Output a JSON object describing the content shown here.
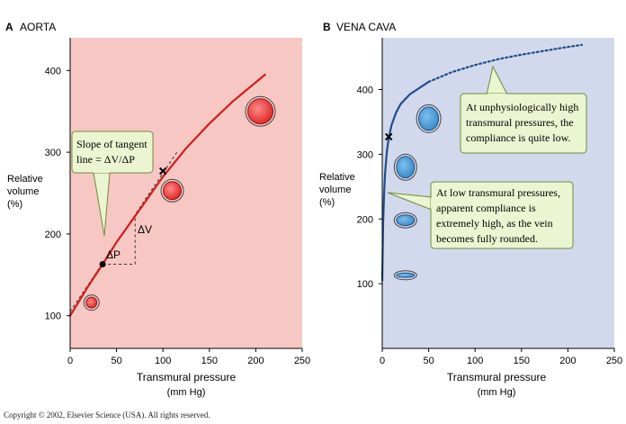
{
  "copyright": "Copyright © 2002, Elsevier Science (USA).  All rights reserved.",
  "chart_data": [
    {
      "type": "line",
      "panel": "A",
      "title": "AORTA",
      "xlabel": "Transmural pressure",
      "xlabel_unit": "(mm Hg)",
      "ylabel": [
        "Relative",
        "volume",
        "(%)"
      ],
      "xlim": [
        0,
        250
      ],
      "ylim": [
        60,
        440
      ],
      "xticks": [
        0,
        50,
        100,
        150,
        200,
        250
      ],
      "yticks": [
        100,
        200,
        300,
        400
      ],
      "background": "#f7c7c3",
      "curve_color": "#cc1f1f",
      "grid": false,
      "series": [
        {
          "x": [
            0,
            20,
            35,
            50,
            75,
            100,
            125,
            150,
            175,
            210
          ],
          "y": [
            100,
            137,
            163,
            190,
            230,
            270,
            305,
            335,
            362,
            395
          ]
        }
      ],
      "tangent": {
        "from": [
          0,
          105
        ],
        "to": [
          115,
          300
        ]
      },
      "points": [
        {
          "x": 35,
          "y": 163,
          "marker": "dot"
        },
        {
          "x": 100,
          "y": 277,
          "marker": "cross"
        }
      ],
      "delta_triangle": {
        "x0": 35,
        "x1": 70,
        "y0": 163,
        "y1": 222,
        "dv_label": "ΔV",
        "dp_label": "ΔP"
      },
      "vessel_cross_sections": [
        {
          "x": 23,
          "y": 116,
          "r": 6
        },
        {
          "x": 110,
          "y": 253,
          "r": 10
        },
        {
          "x": 205,
          "y": 350,
          "r": 14
        }
      ],
      "annotations": [
        {
          "text": [
            "Slope of tangent",
            "line = ΔV/ΔP"
          ]
        }
      ]
    },
    {
      "type": "line",
      "panel": "B",
      "title": "VENA CAVA",
      "xlabel": "Transmural pressure",
      "xlabel_unit": "(mm Hg)",
      "ylabel": [
        "Relative",
        "volume",
        "(%)"
      ],
      "xlim": [
        0,
        250
      ],
      "ylim": [
        0,
        480
      ],
      "xticks": [
        0,
        50,
        100,
        150,
        200,
        250
      ],
      "yticks": [
        100,
        200,
        300,
        400
      ],
      "background": "#d3d9ec",
      "curve_color": "#1f4e8c",
      "grid": false,
      "series": [
        {
          "x": [
            0,
            0.5,
            1,
            2,
            3,
            5,
            7,
            10,
            15,
            20,
            30,
            50
          ],
          "y": [
            105,
            150,
            195,
            240,
            270,
            305,
            325,
            345,
            365,
            378,
            393,
            412
          ],
          "style": "solid"
        },
        {
          "x": [
            50,
            75,
            100,
            125,
            150,
            175,
            200,
            215
          ],
          "y": [
            412,
            427,
            438,
            447,
            454,
            460,
            466,
            469
          ],
          "style": "dotted"
        }
      ],
      "points": [
        {
          "x": 7,
          "y": 327,
          "marker": "cross"
        }
      ],
      "vessel_cross_sections": [
        {
          "x": 50,
          "y": 355,
          "rx": 11,
          "ry": 13
        },
        {
          "x": 25,
          "y": 280,
          "rx": 10,
          "ry": 12
        },
        {
          "x": 25,
          "y": 198,
          "rx": 10,
          "ry": 6
        },
        {
          "x": 25,
          "y": 113,
          "rx": 10,
          "ry": 2.5
        }
      ],
      "annotations": [
        {
          "text": [
            "At unphysiologically high",
            "transmural pressures, the",
            "compliance is quite low."
          ]
        },
        {
          "text": [
            "At low transmural pressures,",
            "apparent compliance is",
            "extremely high, as the vein",
            "becomes fully rounded."
          ]
        }
      ]
    }
  ]
}
